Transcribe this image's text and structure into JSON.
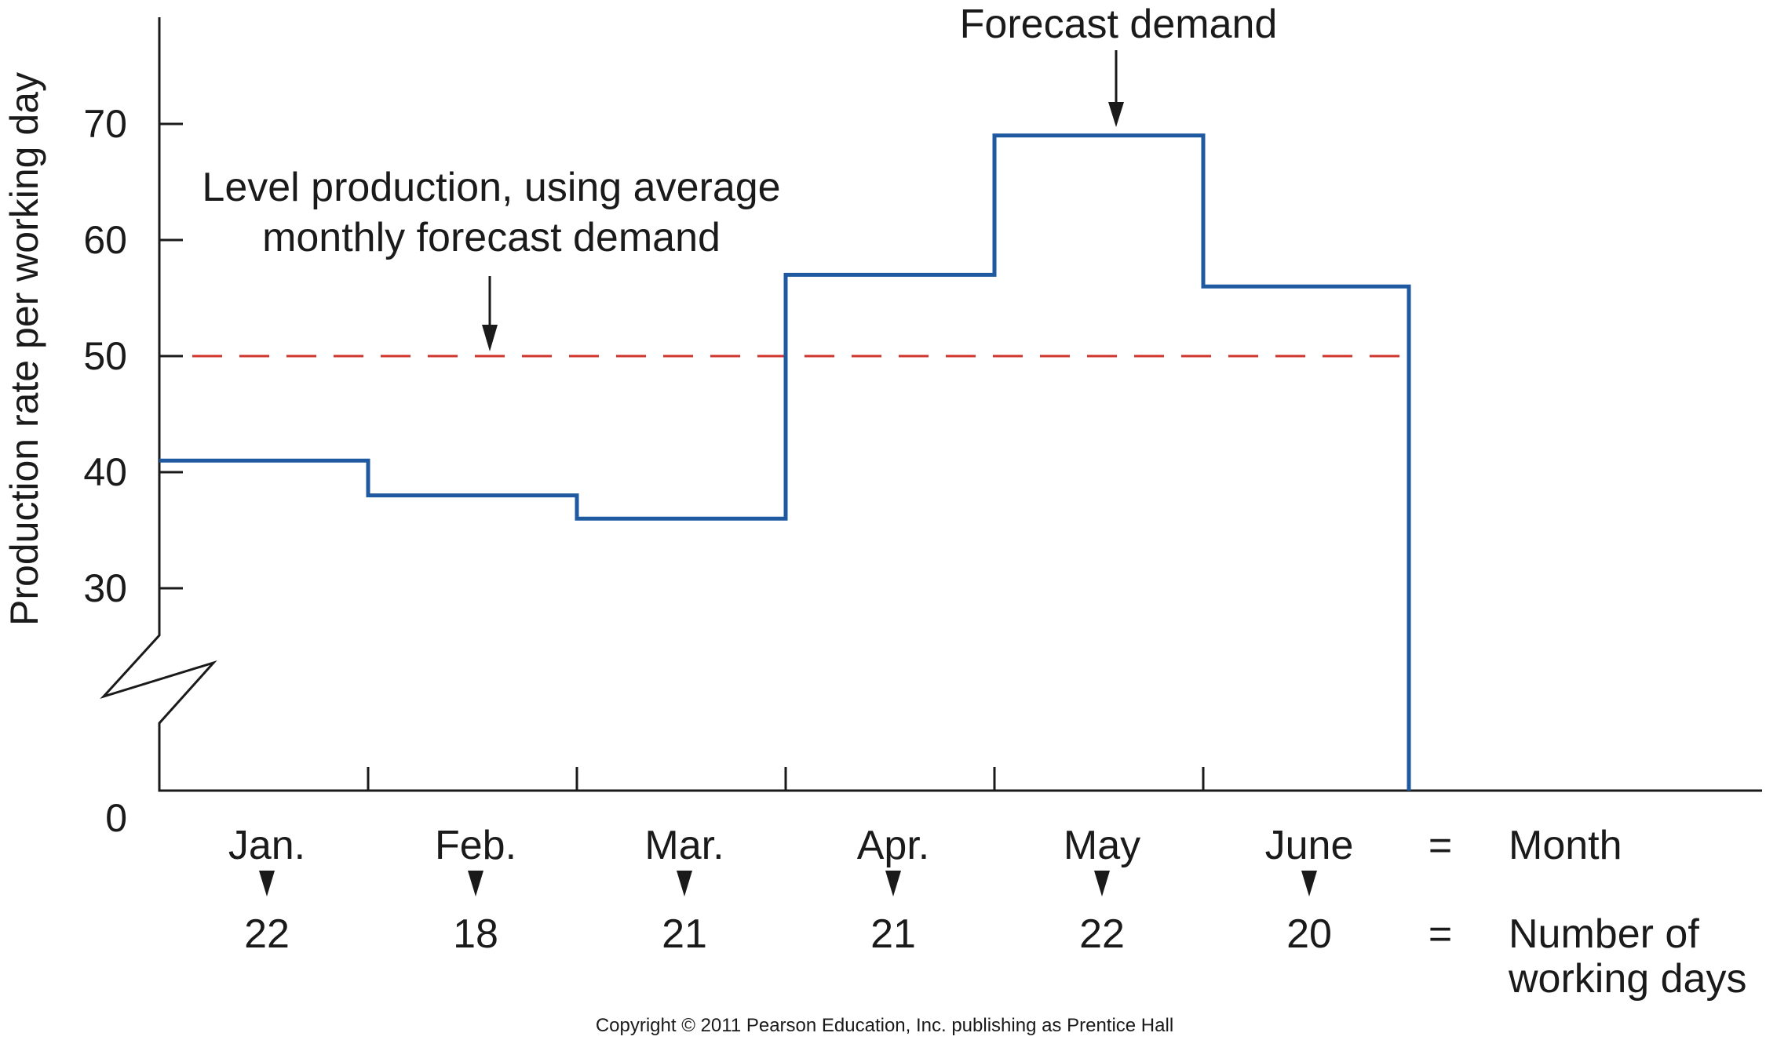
{
  "chart_data": {
    "type": "line",
    "ylabel": "Production rate per working day",
    "y_ticks": [
      30,
      40,
      50,
      60,
      70
    ],
    "y_zero_label": "0",
    "axis_break": true,
    "categories": [
      "Jan.",
      "Feb.",
      "Mar.",
      "Apr.",
      "May",
      "June"
    ],
    "working_days": [
      "22",
      "18",
      "21",
      "21",
      "22",
      "20"
    ],
    "series": [
      {
        "name": "Forecast demand",
        "style": "step",
        "color": "#1f5aa0",
        "values": [
          41,
          38,
          36,
          57,
          69,
          56
        ]
      },
      {
        "name": "Level production, using average monthly forecast demand",
        "style": "dashed",
        "color": "#d0342c",
        "values": [
          50,
          50,
          50,
          50,
          50,
          50
        ]
      }
    ],
    "annotations": {
      "forecast": "Forecast demand",
      "level_line1": "Level production, using average",
      "level_line2": "monthly forecast demand"
    },
    "legend_rows": {
      "equals": "=",
      "month": "Month",
      "days_line1": "Number of",
      "days_line2": "working days"
    }
  },
  "footer": {
    "copyright": "Copyright © 2011 Pearson Education, Inc. publishing as Prentice Hall"
  }
}
